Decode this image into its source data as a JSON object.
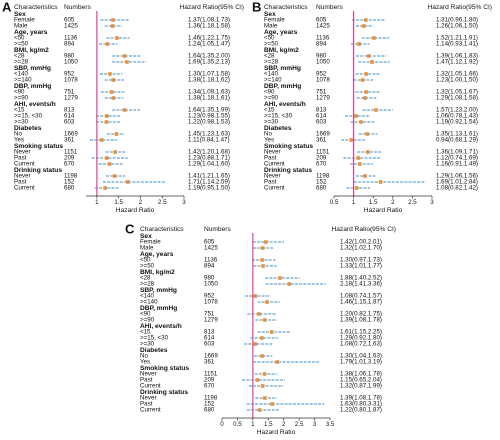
{
  "chart_data": [
    {
      "type": "forest",
      "panel": "A",
      "headers": [
        "Characteristics",
        "Numbers",
        "Hazard Ratio(95% CI)"
      ],
      "x_label": "Hazard Ratio",
      "xlim": [
        0.75,
        3.0
      ],
      "xticks": [
        1,
        1.5,
        2,
        2.5,
        3
      ],
      "reference": 1,
      "point_color": "#e8903a",
      "ci_color": "#3a8fd0",
      "reference_color": "#e0409a",
      "groups": [
        {
          "name": "Sex",
          "rows": [
            {
              "label": "Female",
              "n": 605,
              "hr": 1.37,
              "lo": 1.08,
              "hi": 1.73,
              "hr_label": "1.37(1.08,1.73)"
            },
            {
              "label": "Male",
              "n": 1425,
              "hr": 1.36,
              "lo": 1.18,
              "hi": 1.58,
              "hr_label": "1.36(1.18,1.58)"
            }
          ]
        },
        {
          "name": "Age, years",
          "rows": [
            {
              "label": "<50",
              "n": 1136,
              "hr": 1.46,
              "lo": 1.22,
              "hi": 1.75,
              "hr_label": "1.46(1.22,1.75)"
            },
            {
              "label": ">=50",
              "n": 894,
              "hr": 1.24,
              "lo": 1.05,
              "hi": 1.47,
              "hr_label": "1.24(1.05,1.47)"
            }
          ]
        },
        {
          "name": "BMI, kg/m2",
          "rows": [
            {
              "label": "<28",
              "n": 980,
              "hr": 1.64,
              "lo": 1.35,
              "hi": 2.0,
              "hr_label": "1.64(1.35,2.00)"
            },
            {
              "label": ">=28",
              "n": 1050,
              "hr": 1.69,
              "lo": 1.35,
              "hi": 2.13,
              "hr_label": "1.69(1.35,2.13)"
            }
          ]
        },
        {
          "name": "SBP, mmHg",
          "rows": [
            {
              "label": "<140",
              "n": 952,
              "hr": 1.3,
              "lo": 1.07,
              "hi": 1.58,
              "hr_label": "1.30(1.07,1.58)"
            },
            {
              "label": ">=140",
              "n": 1078,
              "hr": 1.38,
              "lo": 1.18,
              "hi": 1.62,
              "hr_label": "1.38(1.18,1.62)"
            }
          ]
        },
        {
          "name": "DBP, mmHg",
          "rows": [
            {
              "label": "<90",
              "n": 751,
              "hr": 1.34,
              "lo": 1.09,
              "hi": 1.63,
              "hr_label": "1.34(1.09,1.63)"
            },
            {
              "label": ">=90",
              "n": 1279,
              "hr": 1.38,
              "lo": 1.18,
              "hi": 1.61,
              "hr_label": "1.38(1.18,1.61)"
            }
          ]
        },
        {
          "name": "AHI, events/h",
          "rows": [
            {
              "label": "<15",
              "n": 813,
              "hr": 1.64,
              "lo": 1.35,
              "hi": 1.99,
              "hr_label": "1.64(1.35,1.99)"
            },
            {
              "label": ">=15, <30",
              "n": 614,
              "hr": 1.23,
              "lo": 0.98,
              "hi": 1.55,
              "hr_label": "1.23(0.98,1.55)"
            },
            {
              "label": ">=30",
              "n": 603,
              "hr": 1.22,
              "lo": 0.98,
              "hi": 1.53,
              "hr_label": "1.22(0.98,1.53)"
            }
          ]
        },
        {
          "name": "Diabetes",
          "rows": [
            {
              "label": "No",
              "n": 1669,
              "hr": 1.45,
              "lo": 1.23,
              "hi": 1.63,
              "hr_label": "1.45(1.23,1.63)"
            },
            {
              "label": "Yes",
              "n": 361,
              "hr": 1.11,
              "lo": 0.84,
              "hi": 1.47,
              "hr_label": "1.11(0.84,1.47)"
            }
          ]
        },
        {
          "name": "Smoking status",
          "rows": [
            {
              "label": "Never",
              "n": 1151,
              "hr": 1.42,
              "lo": 1.2,
              "hi": 1.68,
              "hr_label": "1.42(1.20,1.68)"
            },
            {
              "label": "Past",
              "n": 209,
              "hr": 1.23,
              "lo": 0.88,
              "hi": 1.71,
              "hr_label": "1.23(0.88,1.71)"
            },
            {
              "label": "Current",
              "n": 670,
              "hr": 1.29,
              "lo": 1.04,
              "hi": 1.6,
              "hr_label": "1.29(1.04,1.60)"
            }
          ]
        },
        {
          "name": "Drinking status",
          "rows": [
            {
              "label": "Never",
              "n": 1198,
              "hr": 1.41,
              "lo": 1.21,
              "hi": 1.65,
              "hr_label": "1.41(1.21,1.65)"
            },
            {
              "label": "Past",
              "n": 152,
              "hr": 1.71,
              "lo": 1.14,
              "hi": 2.59,
              "hr_label": "1.71(1.14,2.59)"
            },
            {
              "label": "Current",
              "n": 680,
              "hr": 1.19,
              "lo": 0.95,
              "hi": 1.5,
              "hr_label": "1.19(0.95,1.50)"
            }
          ]
        }
      ]
    },
    {
      "type": "forest",
      "panel": "B",
      "headers": [
        "Characteristics",
        "Numbers",
        "Hazard Ratio(95% CI)"
      ],
      "x_label": "Hazard Ratio",
      "xlim": [
        0.5,
        3.0
      ],
      "xticks": [
        0.5,
        1,
        1.5,
        2,
        2.5,
        3
      ],
      "reference": 1,
      "point_color": "#e8903a",
      "ci_color": "#3a8fd0",
      "reference_color": "#e0409a",
      "groups": [
        {
          "name": "Sex",
          "rows": [
            {
              "label": "Female",
              "n": 605,
              "hr": 1.31,
              "lo": 0.96,
              "hi": 1.8,
              "hr_label": "1.31(0.96,1.80)"
            },
            {
              "label": "Male",
              "n": 1425,
              "hr": 1.26,
              "lo": 1.06,
              "hi": 1.5,
              "hr_label": "1.26(1.06,1.50)"
            }
          ]
        },
        {
          "name": "Age, years",
          "rows": [
            {
              "label": "<50",
              "n": 1136,
              "hr": 1.52,
              "lo": 1.21,
              "hi": 1.91,
              "hr_label": "1.52(1.21,1.91)"
            },
            {
              "label": ">=50",
              "n": 894,
              "hr": 1.14,
              "lo": 0.93,
              "hi": 1.41,
              "hr_label": "1.14(0.93,1.41)"
            }
          ]
        },
        {
          "name": "BMI, kg/m2",
          "rows": [
            {
              "label": "<28",
              "n": 980,
              "hr": 1.39,
              "lo": 1.06,
              "hi": 1.83,
              "hr_label": "1.39(1.06,1.83)"
            },
            {
              "label": ">=28",
              "n": 1050,
              "hr": 1.47,
              "lo": 1.12,
              "hi": 1.92,
              "hr_label": "1.47(1.12,1.92)"
            }
          ]
        },
        {
          "name": "SBP, mmHg",
          "rows": [
            {
              "label": "<140",
              "n": 952,
              "hr": 1.32,
              "lo": 1.05,
              "hi": 1.66,
              "hr_label": "1.32(1.05,1.66)"
            },
            {
              "label": ">=140",
              "n": 1078,
              "hr": 1.23,
              "lo": 1.0,
              "hi": 1.5,
              "hr_label": "1.23(1.00,1.50)"
            }
          ]
        },
        {
          "name": "DBP, mmHg",
          "rows": [
            {
              "label": "<90",
              "n": 751,
              "hr": 1.32,
              "lo": 1.05,
              "hi": 1.67,
              "hr_label": "1.32(1.05,1.67)"
            },
            {
              "label": ">=90",
              "n": 1279,
              "hr": 1.29,
              "lo": 1.08,
              "hi": 1.58,
              "hr_label": "1.29(1.08,1.58)"
            }
          ]
        },
        {
          "name": "AHI, events/h",
          "rows": [
            {
              "label": "<15",
              "n": 813,
              "hr": 1.57,
              "lo": 1.23,
              "hi": 2.0,
              "hr_label": "1.57(1.23,2.00)"
            },
            {
              "label": ">=15, <30",
              "n": 614,
              "hr": 1.06,
              "lo": 0.78,
              "hi": 1.43,
              "hr_label": "1.06(0.78,1.43)"
            },
            {
              "label": ">=30",
              "n": 603,
              "hr": 1.19,
              "lo": 0.92,
              "hi": 1.54,
              "hr_label": "1.19(0.92,1.54)"
            }
          ]
        },
        {
          "name": "Diabetes",
          "rows": [
            {
              "label": "No",
              "n": 1669,
              "hr": 1.35,
              "lo": 1.13,
              "hi": 1.61,
              "hr_label": "1.35(1.13,1.61)"
            },
            {
              "label": "Yes",
              "n": 361,
              "hr": 0.94,
              "lo": 0.68,
              "hi": 1.29,
              "hr_label": "0.94(0.68,1.29)"
            }
          ]
        },
        {
          "name": "Smoking status",
          "rows": [
            {
              "label": "Never",
              "n": 1151,
              "hr": 1.36,
              "lo": 1.09,
              "hi": 1.71,
              "hr_label": "1.36(1.09,1.71)"
            },
            {
              "label": "Past",
              "n": 209,
              "hr": 1.12,
              "lo": 0.74,
              "hi": 1.69,
              "hr_label": "1.12(0.74,1.69)"
            },
            {
              "label": "Current",
              "n": 670,
              "hr": 1.16,
              "lo": 0.91,
              "hi": 1.49,
              "hr_label": "1.16(0.91,1.49)"
            }
          ]
        },
        {
          "name": "Drinking status",
          "rows": [
            {
              "label": "Never",
              "n": 1198,
              "hr": 1.29,
              "lo": 1.06,
              "hi": 1.56,
              "hr_label": "1.29(1.06,1.56)"
            },
            {
              "label": "Past",
              "n": 152,
              "hr": 1.69,
              "lo": 1.01,
              "hi": 2.84,
              "hr_label": "1.69(1.01,2.84)"
            },
            {
              "label": "Current",
              "n": 680,
              "hr": 1.08,
              "lo": 0.82,
              "hi": 1.42,
              "hr_label": "1.08(0.82,1.42)"
            }
          ]
        }
      ]
    },
    {
      "type": "forest",
      "panel": "C",
      "headers": [
        "Characteristics",
        "Numbers",
        "Hazard Ratio(95% CI)"
      ],
      "x_label": "Hazard Ratio",
      "xlim": [
        0,
        3.5
      ],
      "xticks": [
        0,
        0.5,
        1,
        1.5,
        2,
        2.5,
        3,
        3.5
      ],
      "reference": 1,
      "point_color": "#e8903a",
      "ci_color": "#3a8fd0",
      "reference_color": "#e0409a",
      "groups": [
        {
          "name": "Sex",
          "rows": [
            {
              "label": "Female",
              "n": 605,
              "hr": 1.42,
              "lo": 1.0,
              "hi": 2.01,
              "hr_label": "1.42(1.00,2.01)"
            },
            {
              "label": "Male",
              "n": 1425,
              "hr": 1.32,
              "lo": 1.02,
              "hi": 1.7,
              "hr_label": "1.32(1.02,1.70)"
            }
          ]
        },
        {
          "name": "Age, years",
          "rows": [
            {
              "label": "<50",
              "n": 1136,
              "hr": 1.3,
              "lo": 0.97,
              "hi": 1.73,
              "hr_label": "1.30(0.97,1.73)"
            },
            {
              "label": ">=50",
              "n": 894,
              "hr": 1.33,
              "lo": 1.01,
              "hi": 1.77,
              "hr_label": "1.33(1.01,1.77)"
            }
          ]
        },
        {
          "name": "BMI, kg/m2",
          "rows": [
            {
              "label": "<28",
              "n": 980,
              "hr": 1.88,
              "lo": 1.4,
              "hi": 2.52,
              "hr_label": "1.88(1.40,2.52)"
            },
            {
              "label": ">=28",
              "n": 1050,
              "hr": 2.18,
              "lo": 1.41,
              "hi": 3.36,
              "hr_label": "2.18(1.41,3.36)"
            }
          ]
        },
        {
          "name": "SBP, mmHg",
          "rows": [
            {
              "label": "<140",
              "n": 952,
              "hr": 1.08,
              "lo": 0.74,
              "hi": 1.57,
              "hr_label": "1.08(0.74,1.57)"
            },
            {
              "label": ">=140",
              "n": 1078,
              "hr": 1.46,
              "lo": 1.15,
              "hi": 1.87,
              "hr_label": "1.46(1.15,1.87)"
            }
          ]
        },
        {
          "name": "DBP, mmHg",
          "rows": [
            {
              "label": "<90",
              "n": 751,
              "hr": 1.2,
              "lo": 0.82,
              "hi": 1.75,
              "hr_label": "1.20(0.82,1.75)"
            },
            {
              "label": ">=90",
              "n": 1279,
              "hr": 1.39,
              "lo": 1.08,
              "hi": 1.78,
              "hr_label": "1.39(1.08,1.78)"
            }
          ]
        },
        {
          "name": "AHI, events/h",
          "rows": [
            {
              "label": "<15",
              "n": 813,
              "hr": 1.61,
              "lo": 1.15,
              "hi": 2.25,
              "hr_label": "1.61(1.15,2.25)"
            },
            {
              "label": ">=15, <30",
              "n": 614,
              "hr": 1.29,
              "lo": 0.92,
              "hi": 1.8,
              "hr_label": "1.29(0.92,1.80)"
            },
            {
              "label": ">=30",
              "n": 603,
              "hr": 1.08,
              "lo": 0.72,
              "hi": 1.63,
              "hr_label": "1.08(0.72,1.63)"
            }
          ]
        },
        {
          "name": "Diabetes",
          "rows": [
            {
              "label": "No",
              "n": 1669,
              "hr": 1.3,
              "lo": 1.04,
              "hi": 1.63,
              "hr_label": "1.30(1.04,1.63)"
            },
            {
              "label": "Yes",
              "n": 361,
              "hr": 1.79,
              "lo": 1.01,
              "hi": 3.19,
              "hr_label": "1.79(1.01,3.19)"
            }
          ]
        },
        {
          "name": "Smoking status",
          "rows": [
            {
              "label": "Never",
              "n": 1151,
              "hr": 1.38,
              "lo": 1.06,
              "hi": 1.78,
              "hr_label": "1.38(1.06,1.78)"
            },
            {
              "label": "Past",
              "n": 209,
              "hr": 1.15,
              "lo": 0.65,
              "hi": 2.04,
              "hr_label": "1.15(0.65,2.04)"
            },
            {
              "label": "Current",
              "n": 670,
              "hr": 1.32,
              "lo": 0.87,
              "hi": 1.99,
              "hr_label": "1.32(0.87,1.99)"
            }
          ]
        },
        {
          "name": "Drinking status",
          "rows": [
            {
              "label": "Never",
              "n": 1198,
              "hr": 1.39,
              "lo": 1.08,
              "hi": 1.78,
              "hr_label": "1.39(1.08,1.78)"
            },
            {
              "label": "Past",
              "n": 152,
              "hr": 1.63,
              "lo": 0.8,
              "hi": 3.31,
              "hr_label": "1.63(0.80,3.31)"
            },
            {
              "label": "Current",
              "n": 680,
              "hr": 1.22,
              "lo": 0.8,
              "hi": 1.87,
              "hr_label": "1.22(0.80,1.87)"
            }
          ]
        }
      ]
    }
  ]
}
